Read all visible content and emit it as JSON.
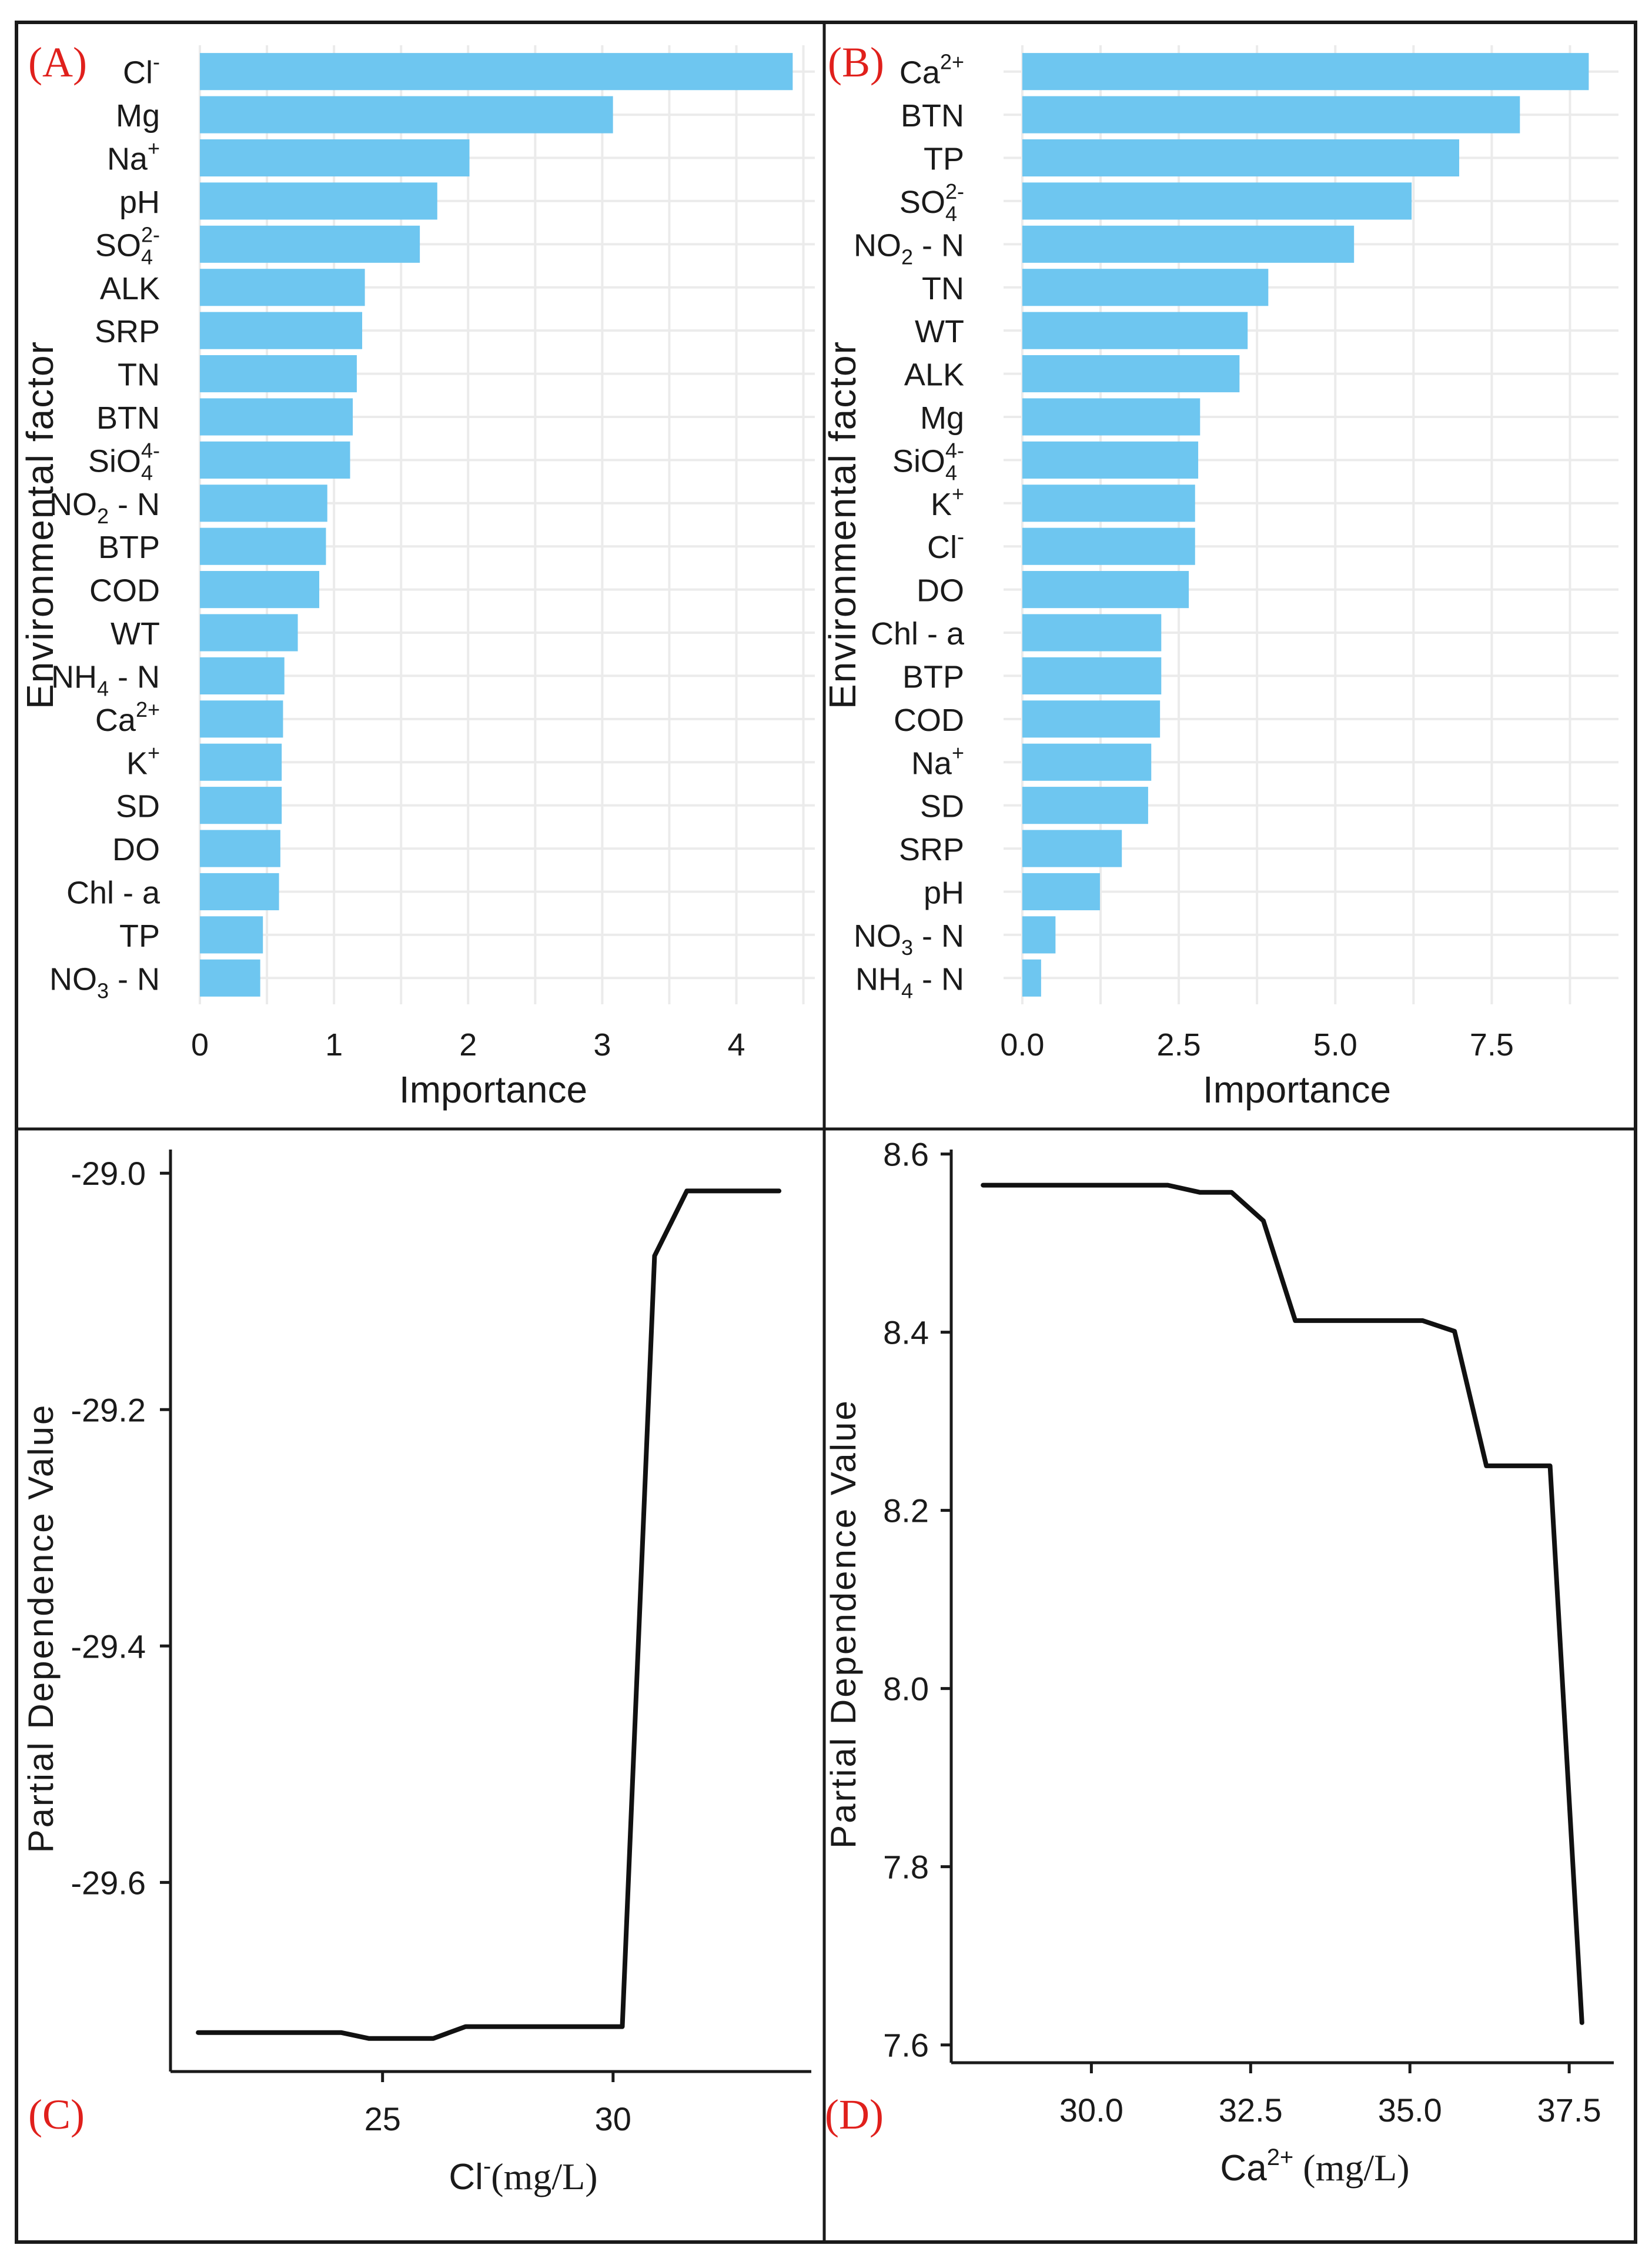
{
  "colors": {
    "bar": "#6ec6f0",
    "grid": "#ebebeb",
    "frame": "#1a1a1a",
    "line": "#111111",
    "panel_letter": "#e0201c",
    "text": "#1a1a1a"
  },
  "chart_data": [
    {
      "id": "A",
      "panel_label": "(A)",
      "type": "bar",
      "orientation": "horizontal",
      "ylabel": "Environmental factor",
      "xlabel": "Importance",
      "xlim": [
        0,
        4.55
      ],
      "xticks": [
        0,
        1,
        2,
        3,
        4
      ],
      "xtick_labels": [
        "0",
        "1",
        "2",
        "3",
        "4"
      ],
      "categories": [
        {
          "label": "Cl",
          "sup": "-",
          "value": 4.42
        },
        {
          "label": "Mg",
          "value": 3.08
        },
        {
          "label": "Na",
          "sup": "+",
          "value": 2.01
        },
        {
          "label": "pH",
          "value": 1.77
        },
        {
          "label": "SO",
          "sub": "4",
          "sup": "2-",
          "value": 1.64
        },
        {
          "label": "ALK",
          "value": 1.23
        },
        {
          "label": "SRP",
          "value": 1.21
        },
        {
          "label": "TN",
          "value": 1.17
        },
        {
          "label": "BTN",
          "value": 1.14
        },
        {
          "label": "SiO",
          "sub": "4",
          "sup": "4-",
          "value": 1.12
        },
        {
          "label": "NO",
          "sub": "2",
          "suffix": " - N",
          "value": 0.95
        },
        {
          "label": "BTP",
          "value": 0.94
        },
        {
          "label": "COD",
          "value": 0.89
        },
        {
          "label": "WT",
          "value": 0.73
        },
        {
          "label": "NH",
          "sub": "4",
          "suffix": " - N",
          "value": 0.63
        },
        {
          "label": "Ca",
          "sup": "2+",
          "value": 0.62
        },
        {
          "label": "K",
          "sup": "+",
          "value": 0.61
        },
        {
          "label": "SD",
          "value": 0.61
        },
        {
          "label": "DO",
          "value": 0.6
        },
        {
          "label": "Chl - a",
          "value": 0.59
        },
        {
          "label": "TP",
          "value": 0.47
        },
        {
          "label": "NO",
          "sub": "3",
          "suffix": " - N",
          "value": 0.45
        }
      ]
    },
    {
      "id": "B",
      "panel_label": "(B)",
      "type": "bar",
      "orientation": "horizontal",
      "ylabel": "Environmental factor",
      "xlabel": "Importance",
      "xlim": [
        -0.3,
        9.45
      ],
      "xticks": [
        0,
        2.5,
        5,
        7.5
      ],
      "xtick_labels": [
        "0.0",
        "2.5",
        "5.0",
        "7.5"
      ],
      "categories": [
        {
          "label": "Ca",
          "sup": "2+",
          "value": 9.05
        },
        {
          "label": "BTN",
          "value": 7.95
        },
        {
          "label": "TP",
          "value": 6.98
        },
        {
          "label": "SO",
          "sub": "4",
          "sup": "2-",
          "value": 6.22
        },
        {
          "label": "NO",
          "sub": "2",
          "suffix": " - N",
          "value": 5.3
        },
        {
          "label": "TN",
          "value": 3.93
        },
        {
          "label": "WT",
          "value": 3.6
        },
        {
          "label": "ALK",
          "value": 3.47
        },
        {
          "label": "Mg",
          "value": 2.84
        },
        {
          "label": "SiO",
          "sub": "4",
          "sup": "4-",
          "value": 2.81
        },
        {
          "label": "K",
          "sup": "+",
          "value": 2.76
        },
        {
          "label": "Cl",
          "sup": "-",
          "value": 2.76
        },
        {
          "label": "DO",
          "value": 2.66
        },
        {
          "label": "Chl - a",
          "value": 2.22
        },
        {
          "label": "BTP",
          "value": 2.22
        },
        {
          "label": "COD",
          "value": 2.2
        },
        {
          "label": "Na",
          "sup": "+",
          "value": 2.06
        },
        {
          "label": "SD",
          "value": 2.01
        },
        {
          "label": "SRP",
          "value": 1.59
        },
        {
          "label": "pH",
          "value": 1.24
        },
        {
          "label": "NO",
          "sub": "3",
          "suffix": " - N",
          "value": 0.53
        },
        {
          "label": "NH",
          "sub": "4",
          "suffix": " - N",
          "value": 0.3
        }
      ]
    },
    {
      "id": "C",
      "panel_label": "(C)",
      "type": "line",
      "ylabel": "Partial Dependence Value",
      "xlabel_main": "Cl",
      "xlabel_sup": "-",
      "xlabel_unit": "(mg/L)",
      "xlim": [
        20.4,
        34.3
      ],
      "ylim": [
        -29.76,
        -28.98
      ],
      "xticks": [
        25,
        30
      ],
      "xtick_labels": [
        "25",
        "30"
      ],
      "yticks": [
        -29.0,
        -29.2,
        -29.4,
        -29.6
      ],
      "ytick_labels": [
        "-29.0",
        "-29.2",
        "-29.4",
        "-29.6"
      ],
      "x": [
        21.0,
        24.1,
        24.7,
        26.1,
        26.8,
        30.2,
        30.9,
        31.6,
        33.6
      ],
      "y": [
        -29.727,
        -29.727,
        -29.732,
        -29.732,
        -29.722,
        -29.722,
        -29.07,
        -29.015,
        -29.015
      ]
    },
    {
      "id": "D",
      "panel_label": "(D)",
      "type": "line",
      "ylabel": "Partial Dependence Value",
      "xlabel_main": "Ca",
      "xlabel_sup": "2+",
      "xlabel_unit": " (mg/L)",
      "xlim": [
        27.8,
        38.2
      ],
      "ylim": [
        7.58,
        8.605
      ],
      "xticks": [
        30.0,
        32.5,
        35.0,
        37.5
      ],
      "xtick_labels": [
        "30.0",
        "32.5",
        "35.0",
        "37.5"
      ],
      "yticks": [
        8.6,
        8.4,
        8.2,
        8.0,
        7.8,
        7.6
      ],
      "ytick_labels": [
        "8.6",
        "8.4",
        "8.2",
        "8.0",
        "7.8",
        "7.6"
      ],
      "x": [
        28.3,
        31.2,
        31.7,
        32.2,
        32.7,
        33.2,
        35.2,
        35.7,
        36.2,
        37.2,
        37.7
      ],
      "y": [
        8.565,
        8.565,
        8.557,
        8.557,
        8.525,
        8.413,
        8.413,
        8.401,
        8.25,
        8.25,
        7.625
      ]
    }
  ]
}
